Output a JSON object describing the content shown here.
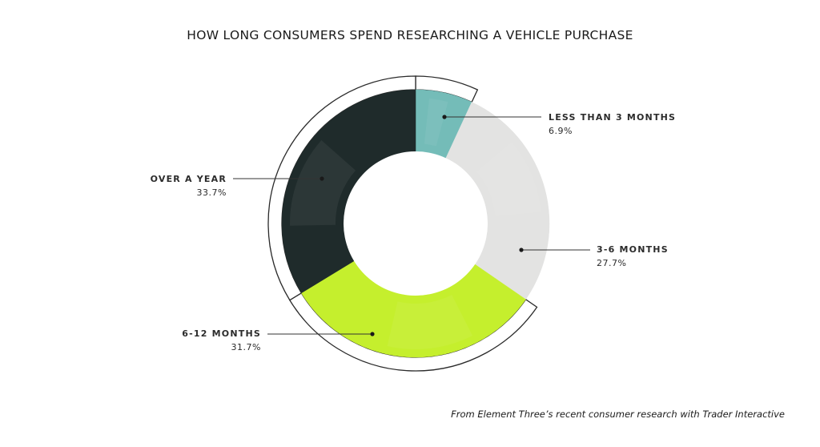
{
  "chart_data": {
    "type": "pie",
    "title": "HOW LONG CONSUMERS SPEND RESEARCHING A VEHICLE PURCHASE",
    "slices": [
      {
        "label": "LESS THAN 3 MONTHS",
        "value": 6.9,
        "value_label": "6.9%",
        "color": "#74bcb8"
      },
      {
        "label": "3-6 MONTHS",
        "value": 27.7,
        "value_label": "27.7%",
        "color": "#e3e3e2"
      },
      {
        "label": "6-12 MONTHS",
        "value": 31.7,
        "value_label": "31.7%",
        "color": "#c5ef2d"
      },
      {
        "label": "OVER A YEAR",
        "value": 33.7,
        "value_label": "33.7%",
        "color": "#1f2b2b"
      }
    ],
    "donut": true,
    "legend": "none",
    "source": "From Element Three’s recent consumer research with Trader Interactive"
  }
}
